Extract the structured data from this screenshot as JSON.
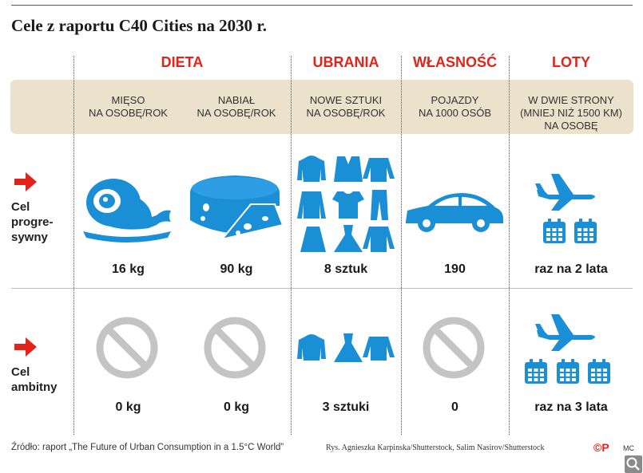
{
  "title": "Cele z raportu C40 Cities na 2030 r.",
  "categories": {
    "dieta": "DIETA",
    "ubrania": "UBRANIA",
    "wlasnosc": "WŁASNOŚĆ",
    "loty": "LOTY"
  },
  "subheaders": {
    "mieso": "MIĘSO\nNA OSOBĘ/ROK",
    "nabial": "NABIAŁ\nNA OSOBĘ/ROK",
    "ubrania": "NOWE SZTUKI\nNA OSOBĘ/ROK",
    "pojazdy": "POJAZDY\nNA 1000 OSÓB",
    "loty": "W DWIE STRONY\n(MNIEJ NIŻ 1500 KM)\nNA OSOBĘ"
  },
  "rows": {
    "progressive": {
      "label": "Cel\nprogre-\nsywny",
      "mieso": "16 kg",
      "nabial": "90 kg",
      "ubrania": "8 sztuk",
      "pojazdy": "190",
      "loty": "raz na 2 lata"
    },
    "ambitious": {
      "label": "Cel\nambitny",
      "mieso": "0 kg",
      "nabial": "0 kg",
      "ubrania": "3 sztuki",
      "pojazdy": "0",
      "loty": "raz na 3 lata"
    }
  },
  "footer": {
    "source": "Źródło: raport „The Future of Urban Consumption in a 1.5°C World”",
    "credit": "Rys. Agnieszka Karpinska/Shutterstock, Salim Nasirov/Shutterstock",
    "logo": "©P",
    "initials": "MC"
  },
  "colors": {
    "accent": "#e2231a",
    "icon": "#1a8fd6",
    "band": "#ece1cb",
    "prohibited": "#c4c4c4"
  }
}
